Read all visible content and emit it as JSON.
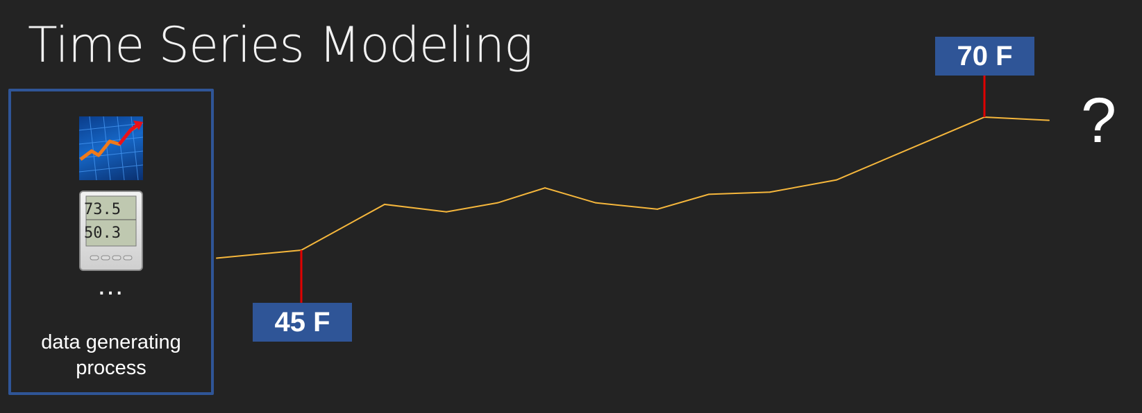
{
  "title": "Time Series Modeling",
  "process": {
    "ellipsis": "…",
    "label_line1": "data generating",
    "label_line2": "process",
    "chart_icon": "rising-chart-icon",
    "thermometer_icon": "digital-thermometer-icon",
    "thermometer_reading_top": "73.5",
    "thermometer_reading_bottom": "50.3"
  },
  "callouts": {
    "low": "45 F",
    "high": "70 F"
  },
  "question_mark": "?",
  "colors": {
    "background": "#232323",
    "accent_blue": "#2f5597",
    "series_line": "#f6b73c",
    "marker": "#e00000"
  },
  "chart_data": {
    "type": "line",
    "title": "",
    "xlabel": "",
    "ylabel": "",
    "y_unit": "F",
    "x": [
      0,
      1,
      2,
      3,
      4,
      5,
      6,
      7,
      8,
      9,
      10,
      11,
      12
    ],
    "values": [
      43.5,
      45,
      53.6,
      52.2,
      53.9,
      56.7,
      53.9,
      52.7,
      55.5,
      55.9,
      58.2,
      70,
      69.4
    ],
    "marked_points": [
      {
        "index": 1,
        "label": "45 F"
      },
      {
        "index": 11,
        "label": "70 F"
      }
    ]
  }
}
